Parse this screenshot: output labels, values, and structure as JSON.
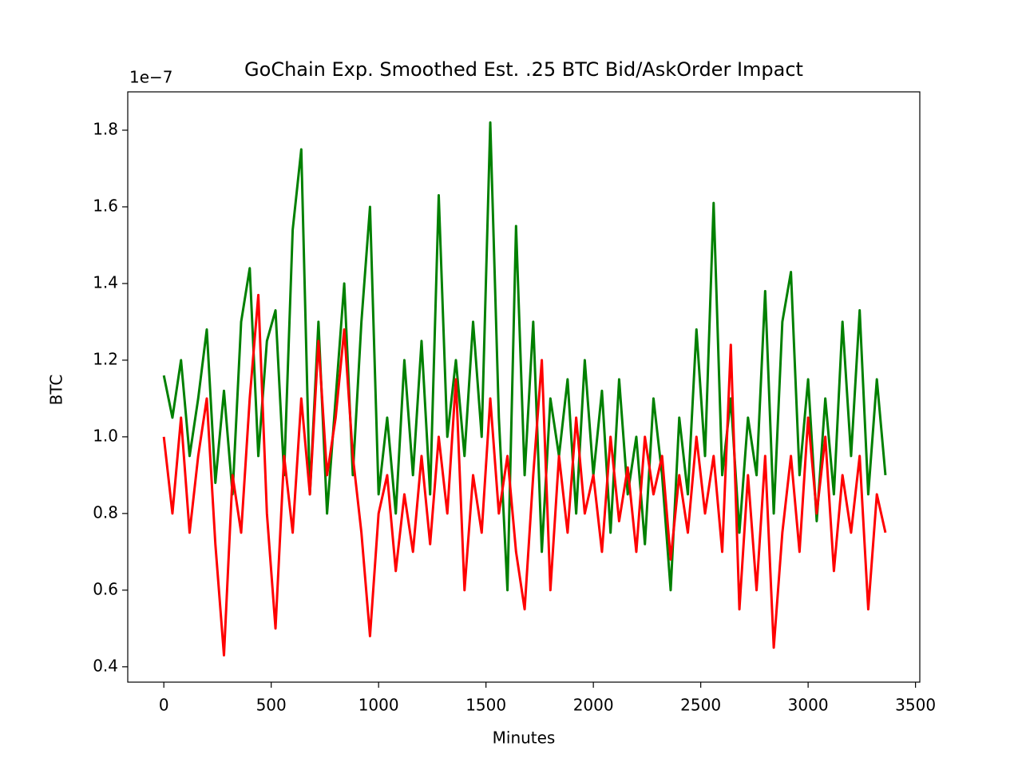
{
  "chart_data": {
    "type": "line",
    "title": "GoChain Exp. Smoothed Est. .25 BTC Bid/AskOrder Impact",
    "x_label": "Minutes",
    "y_label": "BTC",
    "y_offset_text": "1e−7",
    "x": [
      0,
      40,
      80,
      120,
      160,
      200,
      240,
      280,
      320,
      360,
      400,
      440,
      480,
      520,
      560,
      600,
      640,
      680,
      720,
      760,
      800,
      840,
      880,
      920,
      960,
      1000,
      1040,
      1080,
      1120,
      1160,
      1200,
      1240,
      1280,
      1320,
      1360,
      1400,
      1440,
      1480,
      1520,
      1560,
      1600,
      1640,
      1680,
      1720,
      1760,
      1800,
      1840,
      1880,
      1920,
      1960,
      2000,
      2040,
      2080,
      2120,
      2160,
      2200,
      2240,
      2280,
      2320,
      2360,
      2400,
      2440,
      2480,
      2520,
      2560,
      2600,
      2640,
      2680,
      2720,
      2760,
      2800,
      2840,
      2880,
      2920,
      2960,
      3000,
      3040,
      3080,
      3120,
      3160,
      3200,
      3240,
      3280,
      3320,
      3360
    ],
    "series": [
      {
        "color": "#008000",
        "values": [
          1.16,
          1.05,
          1.2,
          0.95,
          1.1,
          1.28,
          0.88,
          1.12,
          0.85,
          1.3,
          1.44,
          0.95,
          1.25,
          1.33,
          0.9,
          1.54,
          1.75,
          0.85,
          1.3,
          0.8,
          1.1,
          1.4,
          0.9,
          1.3,
          1.6,
          0.85,
          1.05,
          0.8,
          1.2,
          0.9,
          1.25,
          0.85,
          1.63,
          1.0,
          1.2,
          0.95,
          1.3,
          1.0,
          1.82,
          1.05,
          0.6,
          1.55,
          0.9,
          1.3,
          0.7,
          1.1,
          0.95,
          1.15,
          0.8,
          1.2,
          0.9,
          1.12,
          0.75,
          1.15,
          0.85,
          1.0,
          0.72,
          1.1,
          0.9,
          0.6,
          1.05,
          0.85,
          1.28,
          0.95,
          1.61,
          0.9,
          1.1,
          0.75,
          1.05,
          0.9,
          1.38,
          0.8,
          1.3,
          1.43,
          0.9,
          1.15,
          0.78,
          1.1,
          0.85,
          1.3,
          0.95,
          1.33,
          0.85,
          1.15,
          0.9
        ]
      },
      {
        "color": "#ff0000",
        "values": [
          1.0,
          0.8,
          1.05,
          0.75,
          0.95,
          1.1,
          0.72,
          0.43,
          0.9,
          0.75,
          1.1,
          1.37,
          0.8,
          0.5,
          0.95,
          0.75,
          1.1,
          0.85,
          1.25,
          0.9,
          1.05,
          1.28,
          0.95,
          0.75,
          0.48,
          0.8,
          0.9,
          0.65,
          0.85,
          0.7,
          0.95,
          0.72,
          1.0,
          0.8,
          1.15,
          0.6,
          0.9,
          0.75,
          1.1,
          0.8,
          0.95,
          0.7,
          0.55,
          0.9,
          1.2,
          0.6,
          0.95,
          0.75,
          1.05,
          0.8,
          0.9,
          0.7,
          1.0,
          0.78,
          0.92,
          0.7,
          1.0,
          0.85,
          0.95,
          0.68,
          0.9,
          0.75,
          1.0,
          0.8,
          0.95,
          0.7,
          1.24,
          0.55,
          0.9,
          0.6,
          0.95,
          0.45,
          0.75,
          0.95,
          0.7,
          1.05,
          0.8,
          1.0,
          0.65,
          0.9,
          0.75,
          0.95,
          0.55,
          0.85,
          0.75
        ]
      }
    ],
    "xlim": [
      -168,
      3520
    ],
    "ylim": [
      0.36,
      1.9
    ],
    "xticks": [
      0,
      500,
      1000,
      1500,
      2000,
      2500,
      3000,
      3500
    ],
    "yticks": [
      0.4,
      0.6,
      0.8,
      {
        "value": 1,
        "label": "1.0"
      },
      1.2,
      1.4,
      1.6,
      1.8
    ]
  }
}
